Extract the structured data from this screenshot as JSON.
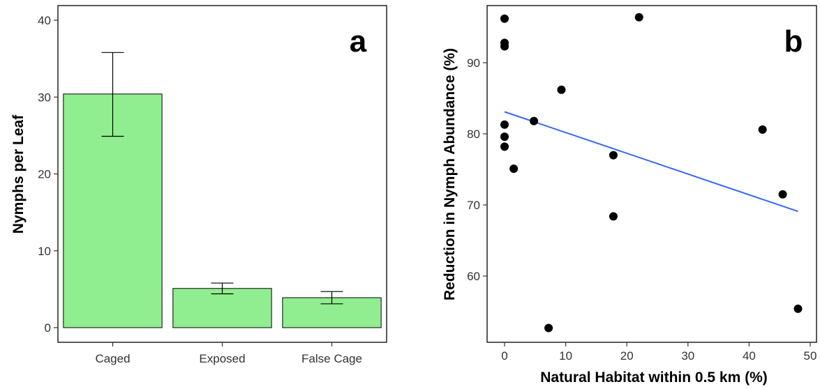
{
  "chart_data": [
    {
      "type": "bar",
      "panel_label": "a",
      "title": "",
      "xlabel": "",
      "ylabel": "Nymphs per Leaf",
      "categories": [
        "Caged",
        "Exposed",
        "False Cage"
      ],
      "values": [
        30.4,
        5.1,
        3.9
      ],
      "error_low": [
        24.9,
        4.4,
        3.1
      ],
      "error_high": [
        35.8,
        5.8,
        4.7
      ],
      "ylim": [
        0,
        42
      ],
      "yticks": [
        0,
        10,
        20,
        30,
        40
      ],
      "bar_color": "#90ee90",
      "grid": false,
      "legend": "none"
    },
    {
      "type": "scatter",
      "panel_label": "b",
      "title": "",
      "xlabel": "Natural Habitat within 0.5 km (%)",
      "ylabel": "Reduction in Nymph Abundance (%)",
      "points": [
        {
          "x": 0,
          "y": 96.2
        },
        {
          "x": 0,
          "y": 92.8
        },
        {
          "x": 0,
          "y": 92.3
        },
        {
          "x": 0,
          "y": 81.3
        },
        {
          "x": 0,
          "y": 79.6
        },
        {
          "x": 0,
          "y": 78.2
        },
        {
          "x": 1.5,
          "y": 75.1
        },
        {
          "x": 4.8,
          "y": 81.8
        },
        {
          "x": 7.2,
          "y": 52.7
        },
        {
          "x": 9.3,
          "y": 86.2
        },
        {
          "x": 17.8,
          "y": 77.0
        },
        {
          "x": 17.8,
          "y": 68.4
        },
        {
          "x": 22.0,
          "y": 96.4
        },
        {
          "x": 42.2,
          "y": 80.6
        },
        {
          "x": 45.5,
          "y": 71.5
        },
        {
          "x": 48.0,
          "y": 55.4
        }
      ],
      "trend_line": {
        "x": [
          0,
          48
        ],
        "y": [
          83.1,
          69.1
        ],
        "color": "#3366ff"
      },
      "xlim": [
        -2,
        50.5
      ],
      "ylim": [
        51,
        99
      ],
      "xticks": [
        0,
        10,
        20,
        30,
        40,
        50
      ],
      "yticks": [
        60,
        70,
        80,
        90
      ],
      "point_color": "#000000",
      "grid": false,
      "legend": "none"
    }
  ]
}
